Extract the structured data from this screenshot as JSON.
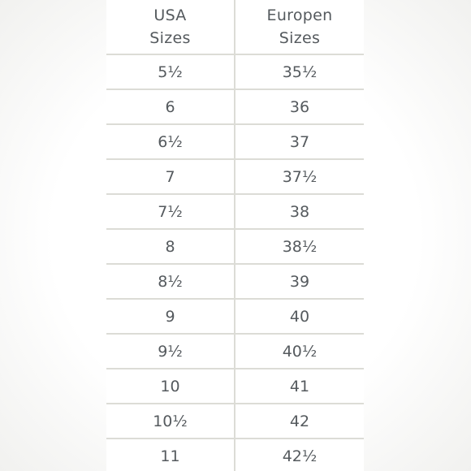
{
  "header": {
    "usa_line1": "USA",
    "usa_line2": "Sizes",
    "eu_line1": "Europen",
    "eu_line2": "Sizes"
  },
  "rows": [
    {
      "usa": "5½",
      "eu": "35½"
    },
    {
      "usa": "6",
      "eu": "36"
    },
    {
      "usa": "6½",
      "eu": "37"
    },
    {
      "usa": "7",
      "eu": "37½"
    },
    {
      "usa": "7½",
      "eu": "38"
    },
    {
      "usa": "8",
      "eu": "38½"
    },
    {
      "usa": "8½",
      "eu": "39"
    },
    {
      "usa": "9",
      "eu": "40"
    },
    {
      "usa": "9½",
      "eu": "40½"
    },
    {
      "usa": "10",
      "eu": "41"
    },
    {
      "usa": "10½",
      "eu": "42"
    },
    {
      "usa": "11",
      "eu": "42½"
    }
  ]
}
